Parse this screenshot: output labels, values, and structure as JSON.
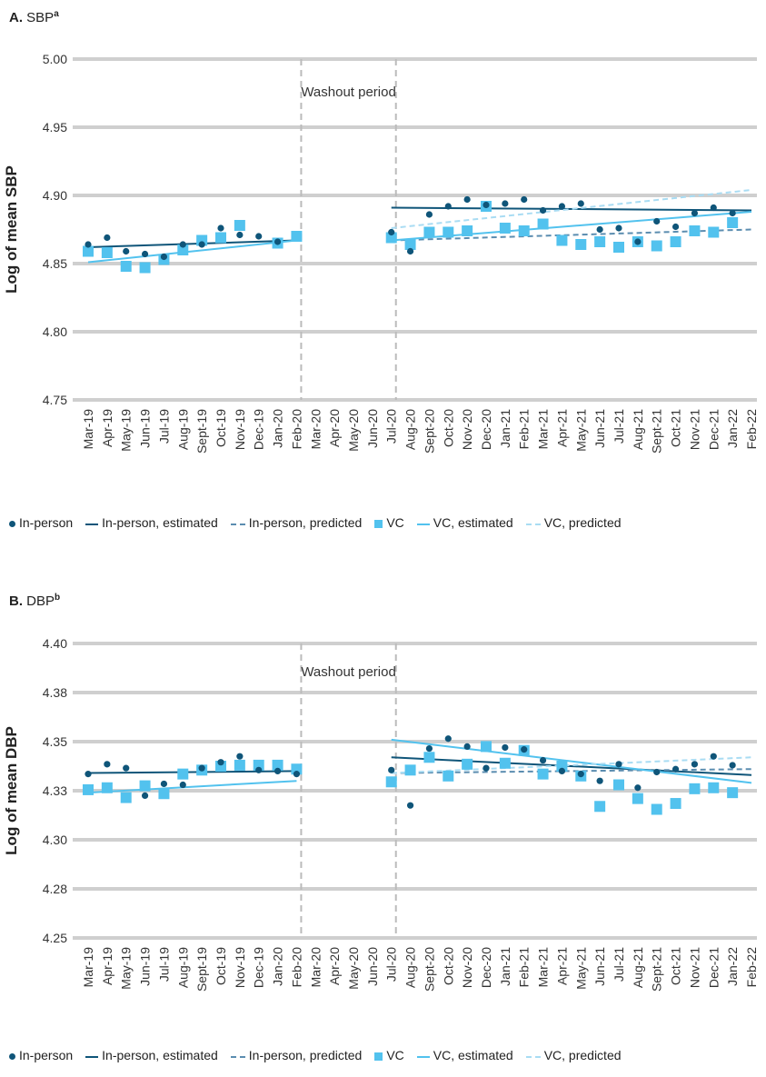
{
  "chart_data": [
    {
      "id": "A",
      "type": "scatter",
      "panel_letter": "A.",
      "panel_title": "SBP",
      "panel_sup": "a",
      "ylabel": "Log of mean SBP",
      "ylim": [
        4.75,
        5.0
      ],
      "yticks": [
        "4.75",
        "4.80",
        "4.85",
        "4.90",
        "4.95",
        "5.00"
      ],
      "yticks_values": [
        4.75,
        4.8,
        4.85,
        4.9,
        4.95,
        5.0
      ],
      "annotation": "Washout period",
      "washout_range": [
        "Feb-20",
        "Jul-20"
      ],
      "categories": [
        "Mar-19",
        "Apr-19",
        "May-19",
        "Jun-19",
        "Jul-19",
        "Aug-19",
        "Sept-19",
        "Oct-19",
        "Nov-19",
        "Dec-19",
        "Jan-20",
        "Feb-20",
        "Mar-20",
        "Apr-20",
        "May-20",
        "Jun-20",
        "Jul-20",
        "Aug-20",
        "Sept-20",
        "Oct-20",
        "Nov-20",
        "Dec-20",
        "Jan-21",
        "Feb-21",
        "Mar-21",
        "Apr-21",
        "May-21",
        "Jun-21",
        "Jul-21",
        "Aug-21",
        "Sept-21",
        "Oct-21",
        "Nov-21",
        "Dec-21",
        "Jan-22",
        "Feb-22"
      ],
      "series": [
        {
          "name": "In-person",
          "kind": "dot",
          "values": [
            4.864,
            4.869,
            4.859,
            4.857,
            4.855,
            4.864,
            4.864,
            4.876,
            4.871,
            4.87,
            4.866,
            null,
            null,
            null,
            null,
            null,
            4.873,
            4.859,
            4.886,
            4.892,
            4.897,
            4.893,
            4.894,
            4.897,
            4.889,
            4.892,
            4.894,
            4.875,
            4.876,
            4.866,
            4.881,
            4.877,
            4.887,
            4.891,
            4.887,
            null
          ]
        },
        {
          "name": "VC",
          "kind": "square",
          "values": [
            4.859,
            4.858,
            4.848,
            4.847,
            4.853,
            4.86,
            4.867,
            4.869,
            4.878,
            null,
            4.865,
            4.87,
            null,
            null,
            null,
            null,
            4.869,
            4.864,
            4.873,
            4.873,
            4.874,
            4.892,
            4.876,
            4.874,
            4.879,
            4.867,
            4.864,
            4.866,
            4.862,
            4.866,
            4.863,
            4.866,
            4.874,
            4.873,
            4.88,
            null
          ]
        },
        {
          "name": "In-person, estimated",
          "kind": "solid-dark",
          "segments": [
            [
              0,
              4.862,
              11,
              4.867
            ],
            [
              16,
              4.891,
              35,
              4.889
            ]
          ]
        },
        {
          "name": "In-person, predicted",
          "kind": "dash-dark",
          "segments": [
            [
              16,
              4.867,
              35,
              4.875
            ]
          ]
        },
        {
          "name": "VC, estimated",
          "kind": "solid-light",
          "segments": [
            [
              0,
              4.851,
              11,
              4.867
            ],
            [
              16,
              4.867,
              35,
              4.888
            ]
          ]
        },
        {
          "name": "VC, predicted",
          "kind": "dash-light",
          "segments": [
            [
              16,
              4.876,
              35,
              4.904
            ]
          ]
        }
      ]
    },
    {
      "id": "B",
      "type": "scatter",
      "panel_letter": "B.",
      "panel_title": "DBP",
      "panel_sup": "b",
      "ylabel": "Log of mean DBP",
      "ylim": [
        4.25,
        4.4
      ],
      "yticks": [
        "4.25",
        "4.28",
        "4.30",
        "4.33",
        "4.35",
        "4.38",
        "4.40"
      ],
      "yticks_values": [
        4.25,
        4.275,
        4.3,
        4.325,
        4.35,
        4.375,
        4.4
      ],
      "annotation": "Washout period",
      "washout_range": [
        "Feb-20",
        "Jul-20"
      ],
      "categories": [
        "Mar-19",
        "Apr-19",
        "May-19",
        "Jun-19",
        "Jul-19",
        "Aug-19",
        "Sept-19",
        "Oct-19",
        "Nov-19",
        "Dec-19",
        "Jan-20",
        "Feb-20",
        "Mar-20",
        "Apr-20",
        "May-20",
        "Jun-20",
        "Jul-20",
        "Aug-20",
        "Sept-20",
        "Oct-20",
        "Nov-20",
        "Dec-20",
        "Jan-21",
        "Feb-21",
        "Mar-21",
        "Apr-21",
        "May-21",
        "Jun-21",
        "Jul-21",
        "Aug-21",
        "Sept-21",
        "Oct-21",
        "Nov-21",
        "Dec-21",
        "Jan-22",
        "Feb-22"
      ],
      "series": [
        {
          "name": "In-person",
          "kind": "dot",
          "values": [
            4.3335,
            4.3385,
            4.3365,
            4.3225,
            4.3285,
            4.328,
            4.3365,
            4.3395,
            4.3425,
            4.3355,
            4.335,
            4.3335,
            null,
            null,
            null,
            null,
            4.3355,
            4.3175,
            4.3465,
            4.3515,
            4.3475,
            4.3365,
            4.347,
            4.346,
            4.3405,
            4.335,
            4.3335,
            4.33,
            4.3385,
            4.3265,
            4.3345,
            4.336,
            4.3385,
            4.3425,
            4.338,
            null
          ]
        },
        {
          "name": "VC",
          "kind": "square",
          "values": [
            4.3255,
            4.3265,
            4.3215,
            4.3275,
            4.3235,
            4.3335,
            4.3355,
            4.3375,
            4.338,
            4.338,
            4.338,
            4.336,
            null,
            null,
            null,
            null,
            4.3295,
            4.3355,
            4.342,
            4.3325,
            4.3385,
            4.3475,
            4.339,
            4.3455,
            4.3335,
            4.3375,
            4.3325,
            4.317,
            4.328,
            4.321,
            4.3155,
            4.3185,
            4.326,
            4.3265,
            4.324,
            null
          ]
        },
        {
          "name": "In-person, estimated",
          "kind": "solid-dark",
          "segments": [
            [
              0,
              4.334,
              11,
              4.335
            ],
            [
              16,
              4.342,
              35,
              4.333
            ]
          ]
        },
        {
          "name": "In-person, predicted",
          "kind": "dash-dark",
          "segments": [
            [
              16,
              4.334,
              35,
              4.336
            ]
          ]
        },
        {
          "name": "VC, estimated",
          "kind": "solid-light",
          "segments": [
            [
              0,
              4.324,
              11,
              4.33
            ],
            [
              16,
              4.351,
              35,
              4.329
            ]
          ]
        },
        {
          "name": "VC, predicted",
          "kind": "dash-light",
          "segments": [
            [
              16,
              4.334,
              35,
              4.342
            ]
          ]
        }
      ]
    }
  ],
  "legend": [
    {
      "label": "In-person",
      "kind": "dot"
    },
    {
      "label": "In-person, estimated",
      "kind": "solid-dark"
    },
    {
      "label": "In-person, predicted",
      "kind": "dash-dark"
    },
    {
      "label": "VC",
      "kind": "square"
    },
    {
      "label": "VC, estimated",
      "kind": "solid-light"
    },
    {
      "label": "VC, predicted",
      "kind": "dash-light"
    }
  ],
  "colors": {
    "in_person": "#0f5579",
    "in_person_predicted": "#5b8db0",
    "vc": "#52c2ee",
    "vc_predicted": "#a9dcf3",
    "grid": "#cfcfcf",
    "washout_line": "#bbbbbb"
  }
}
